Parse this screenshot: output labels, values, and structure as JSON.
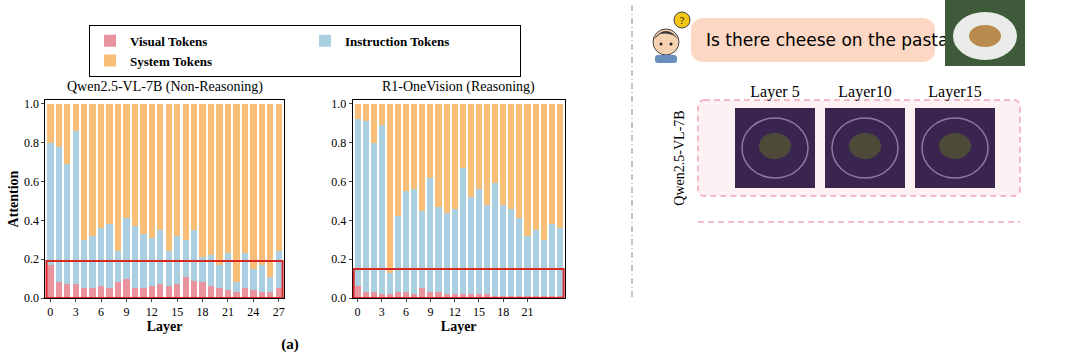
{
  "chart_data": [
    {
      "type": "bar",
      "title": "Qwen2.5-VL-7B (Non-Reasoning)",
      "x_label": "Layer",
      "y_label": "Attention",
      "stacked": true,
      "legend": "top",
      "grid": false,
      "x": [
        0,
        1,
        2,
        3,
        4,
        5,
        6,
        7,
        8,
        9,
        10,
        11,
        12,
        13,
        14,
        15,
        16,
        17,
        18,
        19,
        20,
        21,
        22,
        23,
        24,
        25,
        26,
        27
      ],
      "xlim": [
        -0.6,
        27.6
      ],
      "xticks": [
        0,
        3,
        6,
        9,
        12,
        15,
        18,
        21,
        24,
        27
      ],
      "ylim": [
        0,
        1.02
      ],
      "yticks": [
        {
          "value": 0,
          "label": "0.0"
        },
        0.2,
        0.4,
        0.6,
        0.8,
        {
          "value": 1,
          "label": "1.0"
        }
      ],
      "highlight_y": [
        0,
        0.19
      ],
      "series": [
        {
          "name": "Visual Tokens",
          "color": "#e8939d",
          "values": [
            0.17,
            0.08,
            0.07,
            0.07,
            0.05,
            0.05,
            0.06,
            0.05,
            0.08,
            0.1,
            0.05,
            0.05,
            0.06,
            0.07,
            0.06,
            0.07,
            0.11,
            0.09,
            0.08,
            0.06,
            0.05,
            0.04,
            0.03,
            0.05,
            0.04,
            0.03,
            0.03,
            0.05
          ]
        },
        {
          "name": "Instruction Tokens",
          "color": "#a9cfe1",
          "values": [
            0.63,
            0.7,
            0.62,
            0.79,
            0.25,
            0.27,
            0.3,
            0.33,
            0.16,
            0.31,
            0.32,
            0.28,
            0.25,
            0.28,
            0.18,
            0.25,
            0.19,
            0.26,
            0.13,
            0.16,
            0.12,
            0.19,
            0.05,
            0.18,
            0.11,
            0.14,
            0.08,
            0.19
          ]
        },
        {
          "name": "System Tokens",
          "color": "#f9bf79",
          "values": [
            0.2,
            0.22,
            0.31,
            0.14,
            0.7,
            0.68,
            0.64,
            0.62,
            0.76,
            0.59,
            0.63,
            0.67,
            0.69,
            0.65,
            0.76,
            0.68,
            0.7,
            0.65,
            0.79,
            0.78,
            0.83,
            0.77,
            0.92,
            0.77,
            0.85,
            0.83,
            0.89,
            0.76
          ]
        }
      ]
    },
    {
      "type": "bar",
      "title": "R1-OneVision (Reasoning)",
      "x_label": "Layer",
      "stacked": true,
      "grid": false,
      "x": [
        0,
        1,
        2,
        3,
        4,
        5,
        6,
        7,
        8,
        9,
        10,
        11,
        12,
        13,
        14,
        15,
        16,
        17,
        18,
        19,
        20,
        21,
        22,
        23,
        24,
        25
      ],
      "xlim": [
        -0.6,
        25.6
      ],
      "xticks": [
        0,
        3,
        6,
        9,
        12,
        15,
        18,
        21
      ],
      "ylim": [
        0,
        1.02
      ],
      "yticks": [
        {
          "value": 0,
          "label": "0.0"
        },
        0.2,
        0.4,
        0.6,
        0.8,
        {
          "value": 1,
          "label": "1.0"
        }
      ],
      "highlight_y": [
        0,
        0.15
      ],
      "series": [
        {
          "name": "Visual Tokens",
          "color": "#e8939d",
          "values": [
            0.06,
            0.03,
            0.03,
            0.02,
            0.02,
            0.03,
            0.03,
            0.02,
            0.05,
            0.03,
            0.03,
            0.02,
            0.02,
            0.02,
            0.02,
            0.02,
            0.02,
            0.01,
            0.01,
            0.01,
            0.01,
            0.01,
            0.01,
            0.01,
            0.01,
            0.01
          ]
        },
        {
          "name": "Instruction Tokens",
          "color": "#a9cfe1",
          "values": [
            0.86,
            0.88,
            0.77,
            0.87,
            0.11,
            0.39,
            0.52,
            0.54,
            0.4,
            0.59,
            0.44,
            0.42,
            0.44,
            0.65,
            0.5,
            0.54,
            0.46,
            0.58,
            0.47,
            0.45,
            0.4,
            0.31,
            0.34,
            0.29,
            0.37,
            0.35
          ]
        },
        {
          "name": "System Tokens",
          "color": "#f9bf79",
          "values": [
            0.08,
            0.09,
            0.2,
            0.11,
            0.87,
            0.58,
            0.45,
            0.44,
            0.55,
            0.38,
            0.53,
            0.56,
            0.54,
            0.33,
            0.48,
            0.44,
            0.52,
            0.41,
            0.52,
            0.54,
            0.59,
            0.68,
            0.65,
            0.7,
            0.62,
            0.64
          ]
        }
      ]
    }
  ],
  "panel_label": "(a)",
  "example": {
    "question": "Is there cheese on the pasta?",
    "model": "Qwen2.5-VL-7B",
    "layers": [
      "Layer 5",
      "Layer10",
      "Layer15"
    ]
  }
}
